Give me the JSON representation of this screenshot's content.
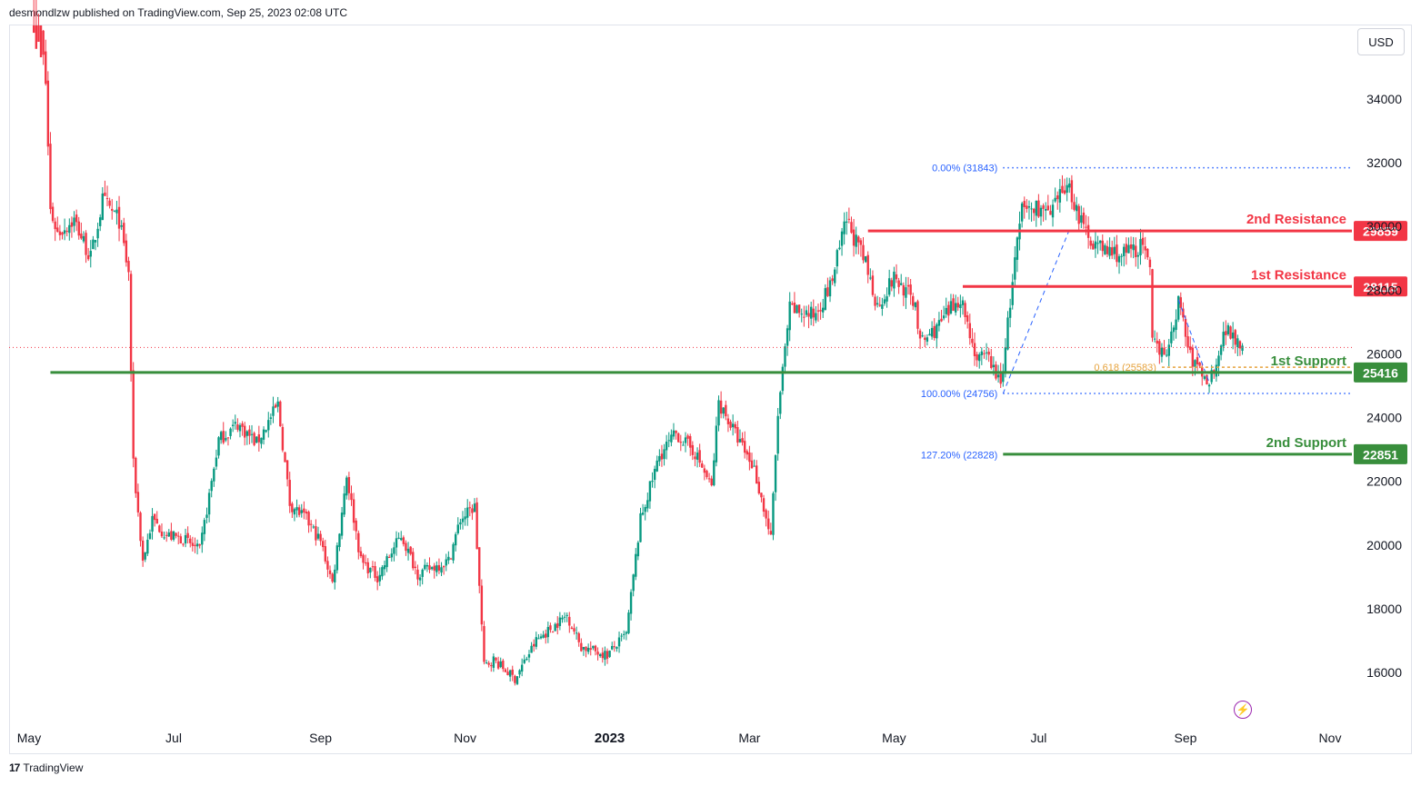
{
  "header": {
    "text": "desmondlzw published on TradingView.com, Sep 25, 2023 02:08 UTC"
  },
  "currency": "USD",
  "footer": {
    "logo_glyph": "17",
    "brand": "TradingView"
  },
  "icons": {
    "bolt": "lightning-icon"
  },
  "colors": {
    "up": "#089981",
    "down": "#f23645",
    "resistance": "#f23645",
    "support": "#388e3c",
    "fib": "#2962ff",
    "fib_level_orange": "#e6a23c"
  },
  "chart_data": {
    "type": "candlestick",
    "title": "",
    "xlabel": "",
    "ylabel": "",
    "y_ticks": [
      16000,
      18000,
      20000,
      22000,
      24000,
      26000,
      28000,
      30000,
      32000,
      34000
    ],
    "y_tick_labels": [
      "16000",
      "18000",
      "20000",
      "22000",
      "24000",
      "26000",
      "28000",
      "30000",
      "32000",
      "34000"
    ],
    "ylim": [
      14600,
      35700
    ],
    "x_ticks": [
      "2022-05-01",
      "2022-07-01",
      "2022-09-01",
      "2022-11-01",
      "2023-01-01",
      "2023-03-01",
      "2023-05-01",
      "2023-07-01",
      "2023-09-01",
      "2023-11-01"
    ],
    "x_tick_labels": [
      "May",
      "Jul",
      "Sep",
      "Nov",
      "2023",
      "Mar",
      "May",
      "Jul",
      "Sep",
      "Nov"
    ],
    "xlim": [
      "2022-05-01",
      "2023-11-01"
    ],
    "price_path": [
      [
        "2022-05-03",
        38500
      ],
      [
        "2022-05-06",
        36000
      ],
      [
        "2022-05-08",
        34500
      ],
      [
        "2022-05-10",
        30500
      ],
      [
        "2022-05-13",
        29800
      ],
      [
        "2022-05-20",
        30200
      ],
      [
        "2022-05-27",
        29000
      ],
      [
        "2022-06-01",
        30800
      ],
      [
        "2022-06-08",
        30200
      ],
      [
        "2022-06-12",
        28500
      ],
      [
        "2022-06-14",
        22500
      ],
      [
        "2022-06-18",
        19500
      ],
      [
        "2022-06-22",
        20800
      ],
      [
        "2022-06-28",
        20300
      ],
      [
        "2022-07-05",
        20200
      ],
      [
        "2022-07-12",
        19800
      ],
      [
        "2022-07-20",
        23300
      ],
      [
        "2022-07-28",
        23800
      ],
      [
        "2022-08-05",
        23200
      ],
      [
        "2022-08-14",
        24400
      ],
      [
        "2022-08-19",
        21300
      ],
      [
        "2022-08-26",
        20800
      ],
      [
        "2022-09-01",
        20100
      ],
      [
        "2022-09-06",
        18800
      ],
      [
        "2022-09-12",
        22200
      ],
      [
        "2022-09-18",
        19500
      ],
      [
        "2022-09-25",
        19000
      ],
      [
        "2022-10-05",
        20300
      ],
      [
        "2022-10-12",
        19100
      ],
      [
        "2022-10-25",
        19500
      ],
      [
        "2022-10-30",
        20800
      ],
      [
        "2022-11-05",
        21200
      ],
      [
        "2022-11-09",
        16200
      ],
      [
        "2022-11-13",
        16400
      ],
      [
        "2022-11-22",
        15800
      ],
      [
        "2022-12-01",
        17000
      ],
      [
        "2022-12-14",
        17800
      ],
      [
        "2022-12-20",
        16800
      ],
      [
        "2022-12-31",
        16550
      ],
      [
        "2023-01-08",
        17200
      ],
      [
        "2023-01-14",
        20800
      ],
      [
        "2023-01-22",
        22800
      ],
      [
        "2023-01-29",
        23500
      ],
      [
        "2023-02-06",
        22900
      ],
      [
        "2023-02-13",
        21800
      ],
      [
        "2023-02-16",
        24500
      ],
      [
        "2023-02-25",
        23200
      ],
      [
        "2023-03-03",
        22400
      ],
      [
        "2023-03-10",
        20200
      ],
      [
        "2023-03-13",
        24100
      ],
      [
        "2023-03-18",
        27400
      ],
      [
        "2023-03-28",
        27200
      ],
      [
        "2023-04-04",
        28100
      ],
      [
        "2023-04-11",
        30200
      ],
      [
        "2023-04-19",
        28800
      ],
      [
        "2023-04-24",
        27500
      ],
      [
        "2023-05-01",
        28400
      ],
      [
        "2023-05-10",
        27600
      ],
      [
        "2023-05-12",
        26300
      ],
      [
        "2023-05-20",
        26900
      ],
      [
        "2023-05-29",
        27800
      ],
      [
        "2023-06-05",
        25800
      ],
      [
        "2023-06-10",
        25900
      ],
      [
        "2023-06-15",
        25000
      ],
      [
        "2023-06-21",
        28900
      ],
      [
        "2023-06-24",
        30500
      ],
      [
        "2023-07-01",
        30600
      ],
      [
        "2023-07-06",
        30300
      ],
      [
        "2023-07-13",
        31400
      ],
      [
        "2023-07-20",
        29900
      ],
      [
        "2023-07-27",
        29300
      ],
      [
        "2023-08-05",
        29100
      ],
      [
        "2023-08-14",
        29400
      ],
      [
        "2023-08-17",
        28500
      ],
      [
        "2023-08-18",
        26300
      ],
      [
        "2023-08-25",
        26100
      ],
      [
        "2023-08-29",
        27700
      ],
      [
        "2023-09-03",
        25900
      ],
      [
        "2023-09-11",
        25100
      ],
      [
        "2023-09-18",
        26800
      ],
      [
        "2023-09-21",
        26600
      ],
      [
        "2023-09-25",
        26300
      ]
    ],
    "current_price_line": 26200,
    "resistance_levels": [
      {
        "label": "2nd Resistance",
        "value": 29859,
        "value_label": "29859",
        "start": "2023-04-20"
      },
      {
        "label": "1st Resistance",
        "value": 28115,
        "value_label": "28115",
        "start": "2023-05-30"
      }
    ],
    "support_levels": [
      {
        "label": "1st Support",
        "value": 25416,
        "value_label": "25416",
        "start": "2022-05-10"
      },
      {
        "label": "2nd Support",
        "value": 22851,
        "value_label": "22851",
        "start": "2023-06-16"
      }
    ],
    "fib_levels": [
      {
        "label": "0.00% (31843)",
        "value": 31843,
        "start": "2023-06-16"
      },
      {
        "label": "100.00% (24756)",
        "value": 24756,
        "start": "2023-06-16"
      },
      {
        "label": "127.20% (22828)",
        "value": 22828,
        "start": "2023-06-16"
      },
      {
        "label": "0.618 (25583)",
        "value": 25583,
        "start": "2023-08-22"
      }
    ],
    "fib_swing_lines": [
      {
        "from": [
          "2023-06-16",
          24756
        ],
        "to": [
          "2023-07-14",
          29900
        ]
      },
      {
        "from": [
          "2023-08-29",
          27700
        ],
        "to": [
          "2023-09-11",
          25100
        ]
      }
    ]
  }
}
